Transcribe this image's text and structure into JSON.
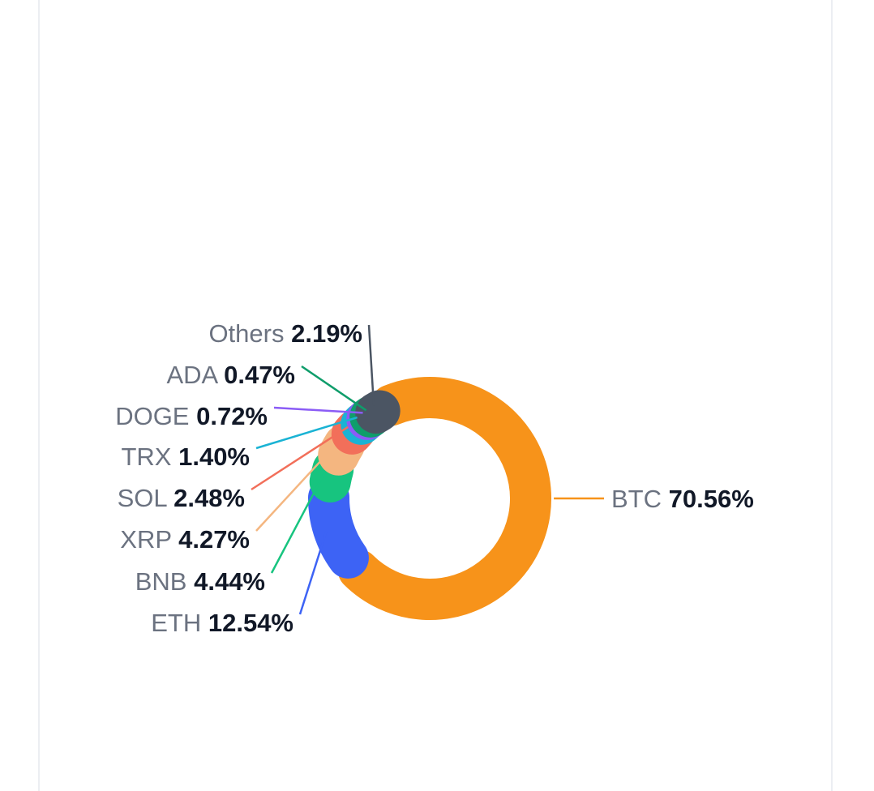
{
  "chart_data": {
    "type": "pie",
    "variant": "donut",
    "slices": [
      {
        "label": "BTC",
        "value": 70.56,
        "value_text": "70.56%",
        "color": "#f7931a"
      },
      {
        "label": "ETH",
        "value": 12.54,
        "value_text": "12.54%",
        "color": "#3d63f5"
      },
      {
        "label": "BNB",
        "value": 4.44,
        "value_text": "4.44%",
        "color": "#17c47f"
      },
      {
        "label": "XRP",
        "value": 4.27,
        "value_text": "4.27%",
        "color": "#f4b680"
      },
      {
        "label": "SOL",
        "value": 2.48,
        "value_text": "2.48%",
        "color": "#f26f5a"
      },
      {
        "label": "TRX",
        "value": 1.4,
        "value_text": "1.40%",
        "color": "#1ab3d4"
      },
      {
        "label": "DOGE",
        "value": 0.72,
        "value_text": "0.72%",
        "color": "#8b5cf6"
      },
      {
        "label": "ADA",
        "value": 0.47,
        "value_text": "0.47%",
        "color": "#0f9d6b"
      },
      {
        "label": "Others",
        "value": 2.19,
        "value_text": "2.19%",
        "color": "#4b5563"
      }
    ]
  }
}
